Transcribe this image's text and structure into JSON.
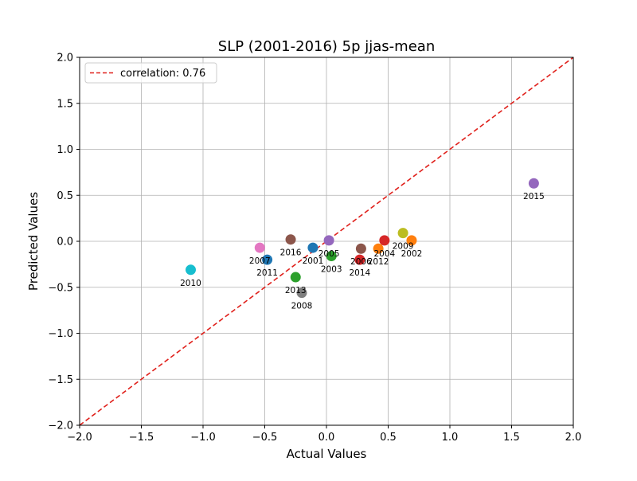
{
  "chart_data": {
    "type": "scatter",
    "title": "SLP (2001-2016) 5p jjas-mean",
    "xlabel": "Actual Values",
    "ylabel": "Predicted Values",
    "xlim": [
      -2.0,
      2.0
    ],
    "ylim": [
      -2.0,
      2.0
    ],
    "xticks": [
      -2.0,
      -1.5,
      -1.0,
      -0.5,
      0.0,
      0.5,
      1.0,
      1.5,
      2.0
    ],
    "yticks": [
      -2.0,
      -1.5,
      -1.0,
      -0.5,
      0.0,
      0.5,
      1.0,
      1.5,
      2.0
    ],
    "xtick_labels": [
      "−2.0",
      "−1.5",
      "−1.0",
      "−0.5",
      "0.0",
      "0.5",
      "1.0",
      "1.5",
      "2.0"
    ],
    "ytick_labels": [
      "−2.0",
      "−1.5",
      "−1.0",
      "−0.5",
      "0.0",
      "0.5",
      "1.0",
      "1.5",
      "2.0"
    ],
    "grid": true,
    "legend": {
      "placement": "top-left",
      "entries": [
        "correlation: 0.76"
      ]
    },
    "reference_line": {
      "name": "correlation: 0.76",
      "style": "dashed",
      "color": "#e0201b",
      "x": [
        -2.0,
        2.0
      ],
      "y": [
        -2.0,
        2.0
      ]
    },
    "points": [
      {
        "label": "2001",
        "x": -0.11,
        "y": -0.07,
        "color": "#1f77b4"
      },
      {
        "label": "2002",
        "x": 0.69,
        "y": 0.01,
        "color": "#ff7f0e"
      },
      {
        "label": "2003",
        "x": 0.04,
        "y": -0.16,
        "color": "#2ca02c"
      },
      {
        "label": "2004",
        "x": 0.47,
        "y": 0.01,
        "color": "#d62728"
      },
      {
        "label": "2005",
        "x": 0.02,
        "y": 0.01,
        "color": "#9467bd"
      },
      {
        "label": "2006",
        "x": 0.28,
        "y": -0.08,
        "color": "#8c564b"
      },
      {
        "label": "2007",
        "x": -0.54,
        "y": -0.07,
        "color": "#e377c2"
      },
      {
        "label": "2008",
        "x": -0.2,
        "y": -0.56,
        "color": "#7f7f7f"
      },
      {
        "label": "2009",
        "x": 0.62,
        "y": 0.09,
        "color": "#bcbd22"
      },
      {
        "label": "2010",
        "x": -1.1,
        "y": -0.31,
        "color": "#17becf"
      },
      {
        "label": "2011",
        "x": -0.48,
        "y": -0.2,
        "color": "#1f77b4"
      },
      {
        "label": "2012",
        "x": 0.42,
        "y": -0.08,
        "color": "#ff7f0e"
      },
      {
        "label": "2013",
        "x": -0.25,
        "y": -0.39,
        "color": "#2ca02c"
      },
      {
        "label": "2014",
        "x": 0.27,
        "y": -0.2,
        "color": "#d62728"
      },
      {
        "label": "2015",
        "x": 1.68,
        "y": 0.63,
        "color": "#9467bd"
      },
      {
        "label": "2016",
        "x": -0.29,
        "y": 0.02,
        "color": "#8c564b"
      }
    ]
  }
}
